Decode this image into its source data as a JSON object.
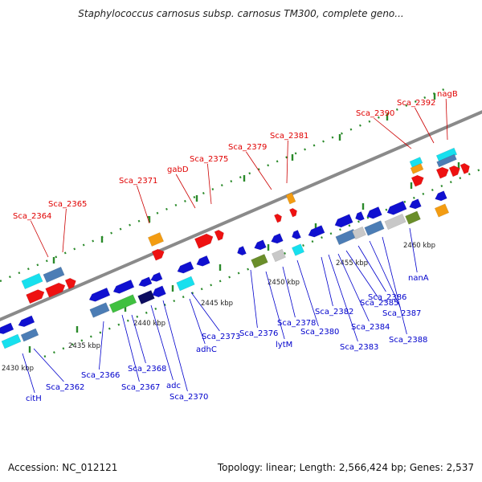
{
  "header": {
    "title": "Staphylococcus carnosus subsp. carnosus TM300, complete geno..."
  },
  "footer": {
    "accession": "Accession: NC_012121",
    "topology": "Topology: linear; Length: 2,566,424 bp; Genes: 2,537"
  },
  "colors": {
    "upper_label": "#e00000",
    "lower_label": "#0000cc",
    "leader": "#0000cc",
    "upper_leader": "#cc0000",
    "backbone": "#8a8a8a",
    "tick": "#2a8a2a",
    "gene_blue": "#1010d0",
    "gene_red": "#ee1111",
    "gene_cyan": "#17e0ee",
    "gene_steel": "#4c7db5",
    "gene_green": "#40c040",
    "gene_olive": "#6a8e2a",
    "gene_orange": "#f39c12",
    "gene_grey": "#c8c8c8",
    "gene_navy": "#0d0d60"
  },
  "scale_labels": [
    "2430 kbp",
    "2435 kbp",
    "2440 kbp",
    "2445 kbp",
    "2450 kbp",
    "2455 kbp",
    "2460 kbp"
  ],
  "upper_gene_labels": [
    "Sca_2364",
    "Sca_2365",
    "Sca_2371",
    "gabD",
    "Sca_2375",
    "Sca_2379",
    "Sca_2381",
    "Sca_2390",
    "Sca_2392",
    "nagB"
  ],
  "lower_gene_labels": [
    "citH",
    "Sca_2362",
    "Sca_2366",
    "Sca_2367",
    "Sca_2368",
    "adc",
    "Sca_2370",
    "adhC",
    "Sca_2373",
    "Sca_2376",
    "lytM",
    "Sca_2378",
    "Sca_2380",
    "Sca_2382",
    "Sca_2383",
    "Sca_2384",
    "Sca_2385",
    "Sca_2386",
    "Sca_2387",
    "Sca_2388",
    "nanA"
  ]
}
